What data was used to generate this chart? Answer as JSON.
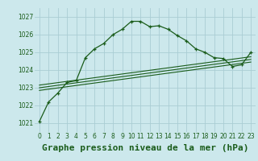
{
  "title": "Graphe pression niveau de la mer (hPa)",
  "bg_color": "#cce8ec",
  "grid_color": "#aacdd4",
  "line_color": "#1a5c1a",
  "xlim": [
    -0.5,
    23.5
  ],
  "ylim": [
    1020.5,
    1027.5
  ],
  "yticks": [
    1021,
    1022,
    1023,
    1024,
    1025,
    1026,
    1027
  ],
  "xticks": [
    0,
    1,
    2,
    3,
    4,
    5,
    6,
    7,
    8,
    9,
    10,
    11,
    12,
    13,
    14,
    15,
    16,
    17,
    18,
    19,
    20,
    21,
    22,
    23
  ],
  "main_line": [
    [
      0,
      1021.1
    ],
    [
      1,
      1022.2
    ],
    [
      2,
      1022.7
    ],
    [
      3,
      1023.3
    ],
    [
      4,
      1023.4
    ],
    [
      5,
      1024.7
    ],
    [
      6,
      1025.2
    ],
    [
      7,
      1025.5
    ],
    [
      8,
      1026.0
    ],
    [
      9,
      1026.3
    ],
    [
      10,
      1026.75
    ],
    [
      11,
      1026.75
    ],
    [
      12,
      1026.45
    ],
    [
      13,
      1026.5
    ],
    [
      14,
      1026.3
    ],
    [
      15,
      1025.95
    ],
    [
      16,
      1025.65
    ],
    [
      17,
      1025.2
    ],
    [
      18,
      1025.0
    ],
    [
      19,
      1024.7
    ],
    [
      20,
      1024.65
    ],
    [
      21,
      1024.2
    ],
    [
      22,
      1024.3
    ],
    [
      23,
      1025.0
    ]
  ],
  "linear_line1": [
    [
      0,
      1022.85
    ],
    [
      23,
      1024.45
    ]
  ],
  "linear_line2": [
    [
      0,
      1023.0
    ],
    [
      23,
      1024.6
    ]
  ],
  "linear_line3": [
    [
      0,
      1023.15
    ],
    [
      23,
      1024.75
    ]
  ],
  "title_fontsize": 8,
  "tick_fontsize": 5.5,
  "tick_color": "#1a5c1a"
}
